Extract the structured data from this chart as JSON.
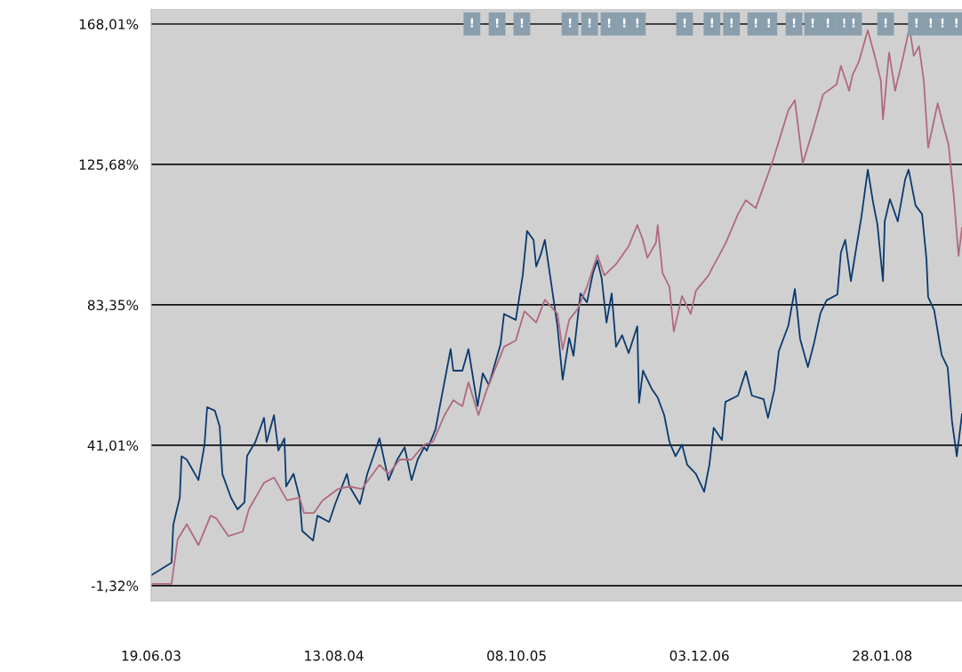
{
  "chart_data": {
    "type": "line",
    "xlim": [
      "2003-06-19",
      "2008-07-30"
    ],
    "xticks": [
      {
        "value": "2003-06-19",
        "label": "19.06.03"
      },
      {
        "value": "2004-08-13",
        "label": "13.08.04"
      },
      {
        "value": "2005-10-08",
        "label": "08.10.05"
      },
      {
        "value": "2006-12-03",
        "label": "03.12.06"
      },
      {
        "value": "2008-01-28",
        "label": "28.01.08"
      }
    ],
    "ylim": [
      -5.9,
      172.56
    ],
    "yticks": [
      {
        "value": -1.32,
        "label": "-1,32%"
      },
      {
        "value": 41.01,
        "label": "41,01%"
      },
      {
        "value": 83.35,
        "label": "83,35%"
      },
      {
        "value": 125.68,
        "label": "125,68%"
      },
      {
        "value": 168.01,
        "label": "168,01%"
      }
    ],
    "grid": "y",
    "line_style": "solid",
    "marker": "none",
    "series": [
      {
        "color": "#0b3a6e",
        "x": [
          "2003-06-19",
          "2003-08-05",
          "2003-08-09",
          "2003-08-24",
          "2003-08-28",
          "2003-09-09",
          "2003-10-06",
          "2003-10-20",
          "2003-10-26",
          "2003-11-13",
          "2003-11-24",
          "2003-11-30",
          "2003-12-20",
          "2004-01-04",
          "2004-01-20",
          "2004-01-26",
          "2004-02-14",
          "2004-03-05",
          "2004-03-11",
          "2004-03-28",
          "2004-04-07",
          "2004-04-21",
          "2004-04-25",
          "2004-05-12",
          "2004-05-26",
          "2004-06-01",
          "2004-06-26",
          "2004-07-06",
          "2004-08-02",
          "2004-08-16",
          "2004-09-12",
          "2004-09-18",
          "2004-10-12",
          "2004-10-29",
          "2004-11-26",
          "2004-12-17",
          "2005-01-06",
          "2005-01-23",
          "2005-02-08",
          "2005-02-22",
          "2005-03-09",
          "2005-03-15",
          "2005-04-04",
          "2005-05-09",
          "2005-05-15",
          "2005-06-05",
          "2005-06-19",
          "2005-07-10",
          "2005-07-22",
          "2005-08-05",
          "2005-09-01",
          "2005-09-09",
          "2005-10-06",
          "2005-10-22",
          "2005-11-01",
          "2005-11-16",
          "2005-11-22",
          "2005-12-02",
          "2005-12-12",
          "2005-12-27",
          "2006-01-10",
          "2006-01-22",
          "2006-02-06",
          "2006-02-16",
          "2006-03-04",
          "2006-03-19",
          "2006-04-02",
          "2006-04-12",
          "2006-04-22",
          "2006-05-03",
          "2006-05-15",
          "2006-05-25",
          "2006-06-08",
          "2006-06-23",
          "2006-07-13",
          "2006-07-17",
          "2006-07-26",
          "2006-08-15",
          "2006-08-29",
          "2006-09-13",
          "2006-09-25",
          "2006-10-09",
          "2006-10-24",
          "2006-11-05",
          "2006-11-25",
          "2006-12-14",
          "2006-12-26",
          "2007-01-05",
          "2007-01-24",
          "2007-02-01",
          "2007-03-02",
          "2007-03-20",
          "2007-04-03",
          "2007-04-30",
          "2007-05-10",
          "2007-05-25",
          "2007-06-04",
          "2007-06-26",
          "2007-07-11",
          "2007-07-23",
          "2007-08-10",
          "2007-08-25",
          "2007-09-08",
          "2007-09-22",
          "2007-10-17",
          "2007-10-25",
          "2007-11-04",
          "2007-11-17",
          "2007-12-01",
          "2007-12-11",
          "2007-12-26",
          "2008-01-07",
          "2008-01-17",
          "2008-01-30",
          "2008-02-03",
          "2008-02-15",
          "2008-03-04",
          "2008-03-21",
          "2008-03-29",
          "2008-04-14",
          "2008-04-29",
          "2008-05-09",
          "2008-05-13",
          "2008-05-27",
          "2008-06-13",
          "2008-06-27",
          "2008-07-07",
          "2008-07-18",
          "2008-07-30"
        ],
        "values": [
          1.8,
          5.6,
          17.1,
          25.2,
          37.7,
          36.7,
          30.5,
          41.2,
          52.5,
          51.4,
          46.6,
          32.4,
          25.2,
          21.7,
          23.8,
          37.8,
          42.0,
          49.3,
          42.0,
          50.1,
          39.4,
          43.1,
          28.6,
          32.4,
          25.2,
          15.2,
          12.3,
          19.8,
          17.9,
          23.3,
          32.4,
          28.6,
          23.3,
          32.4,
          43.1,
          30.5,
          36.7,
          40.4,
          30.5,
          36.7,
          40.4,
          39.4,
          45.8,
          70.0,
          63.5,
          63.5,
          70.0,
          52.8,
          62.7,
          59.2,
          71.5,
          80.6,
          78.8,
          92.2,
          105.6,
          102.9,
          94.9,
          98.3,
          102.9,
          89.5,
          76.9,
          60.8,
          73.4,
          68.0,
          86.8,
          84.1,
          93.0,
          96.7,
          91.3,
          78.0,
          86.8,
          70.7,
          74.2,
          68.8,
          76.9,
          53.8,
          63.5,
          58.1,
          55.4,
          50.1,
          42.0,
          37.7,
          41.2,
          35.1,
          32.4,
          27.0,
          35.1,
          46.3,
          42.6,
          54.1,
          56.0,
          63.3,
          56.0,
          54.9,
          49.3,
          57.9,
          69.4,
          77.1,
          88.1,
          73.1,
          64.6,
          72.3,
          80.9,
          84.7,
          86.5,
          99.1,
          102.9,
          90.5,
          101.8,
          109.6,
          124.1,
          114.4,
          107.7,
          90.5,
          108.5,
          115.2,
          108.5,
          121.1,
          124.1,
          113.3,
          110.7,
          97.3,
          85.7,
          81.7,
          68.3,
          64.5,
          48.2,
          37.7,
          50.4
        ]
      },
      {
        "color": "#b06a7e",
        "x": [
          "2003-06-19",
          "2003-08-05",
          "2003-08-19",
          "2003-09-09",
          "2003-10-06",
          "2003-11-03",
          "2003-11-16",
          "2003-12-14",
          "2004-01-16",
          "2004-01-30",
          "2004-03-05",
          "2004-03-28",
          "2004-04-27",
          "2004-05-26",
          "2004-06-05",
          "2004-06-28",
          "2004-07-18",
          "2004-08-22",
          "2004-09-18",
          "2004-10-16",
          "2004-11-26",
          "2004-12-17",
          "2005-01-12",
          "2005-02-08",
          "2005-03-09",
          "2005-03-29",
          "2005-04-25",
          "2005-05-15",
          "2005-06-05",
          "2005-06-19",
          "2005-07-12",
          "2005-07-30",
          "2005-09-09",
          "2005-10-06",
          "2005-10-26",
          "2005-11-22",
          "2005-12-12",
          "2006-01-10",
          "2006-01-22",
          "2006-02-06",
          "2006-02-26",
          "2006-03-19",
          "2006-04-12",
          "2006-04-28",
          "2006-05-25",
          "2006-06-23",
          "2006-07-13",
          "2006-07-26",
          "2006-08-05",
          "2006-08-25",
          "2006-08-29",
          "2006-09-09",
          "2006-09-25",
          "2006-10-05",
          "2006-10-24",
          "2006-11-13",
          "2006-11-25",
          "2006-12-24",
          "2007-01-01",
          "2007-02-01",
          "2007-03-02",
          "2007-03-20",
          "2007-04-12",
          "2007-05-21",
          "2007-06-26",
          "2007-07-11",
          "2007-07-29",
          "2007-08-25",
          "2007-09-14",
          "2007-10-15",
          "2007-10-25",
          "2007-11-13",
          "2007-11-21",
          "2007-12-05",
          "2007-12-26",
          "2008-01-11",
          "2008-01-25",
          "2008-01-30",
          "2008-02-13",
          "2008-02-27",
          "2008-03-17",
          "2008-03-31",
          "2008-04-10",
          "2008-04-22",
          "2008-05-03",
          "2008-05-13",
          "2008-06-04",
          "2008-06-19",
          "2008-06-29",
          "2008-07-11",
          "2008-07-22",
          "2008-07-30"
        ],
        "values": [
          -0.8,
          -0.8,
          12.6,
          17.2,
          10.9,
          19.8,
          19.0,
          13.6,
          15.0,
          21.7,
          29.7,
          31.3,
          24.4,
          25.2,
          20.6,
          20.6,
          24.4,
          27.8,
          28.6,
          27.8,
          35.1,
          32.4,
          36.7,
          36.7,
          41.2,
          42.0,
          50.1,
          54.6,
          52.8,
          60.0,
          50.1,
          57.3,
          70.7,
          72.6,
          81.4,
          78.0,
          84.9,
          80.6,
          69.9,
          78.8,
          82.2,
          88.7,
          98.3,
          92.2,
          95.6,
          101.0,
          107.4,
          102.9,
          97.5,
          102.1,
          107.4,
          93.0,
          88.7,
          75.3,
          86.0,
          80.6,
          87.6,
          92.2,
          94.3,
          101.8,
          110.7,
          114.9,
          112.5,
          126.7,
          142.0,
          145.0,
          125.9,
          137.5,
          146.8,
          149.8,
          155.4,
          147.9,
          152.7,
          156.5,
          166.1,
          158.4,
          150.9,
          139.3,
          159.4,
          147.9,
          158.4,
          166.9,
          158.4,
          161.3,
          150.9,
          130.7,
          144.1,
          136.4,
          131.6,
          116.3,
          98.1,
          106.6
        ]
      }
    ],
    "annotations": [
      {
        "text": "!",
        "x": "2005-06-27"
      },
      {
        "text": "!",
        "x": "2005-08-24"
      },
      {
        "text": "!",
        "x": "2005-10-20"
      },
      {
        "text": "!",
        "x": "2006-02-08"
      },
      {
        "text": "!",
        "x": "2006-03-25"
      },
      {
        "text": "!",
        "x": "2006-05-09"
      },
      {
        "text": "!",
        "x": "2006-06-13"
      },
      {
        "text": "!",
        "x": "2006-07-13"
      },
      {
        "text": "!",
        "x": "2006-10-30"
      },
      {
        "text": "!",
        "x": "2007-01-01"
      },
      {
        "text": "!",
        "x": "2007-02-15"
      },
      {
        "text": "!",
        "x": "2007-04-12"
      },
      {
        "text": "!",
        "x": "2007-05-12"
      },
      {
        "text": "!",
        "x": "2007-07-09"
      },
      {
        "text": "!",
        "x": "2007-08-21"
      },
      {
        "text": "!",
        "x": "2007-09-25"
      },
      {
        "text": "!",
        "x": "2007-11-02"
      },
      {
        "text": "!",
        "x": "2007-11-23"
      },
      {
        "text": "!",
        "x": "2008-02-05"
      },
      {
        "text": "!",
        "x": "2008-04-16"
      },
      {
        "text": "!",
        "x": "2008-05-19"
      },
      {
        "text": "!",
        "x": "2008-06-15"
      },
      {
        "text": "!",
        "x": "2008-07-17"
      }
    ]
  }
}
